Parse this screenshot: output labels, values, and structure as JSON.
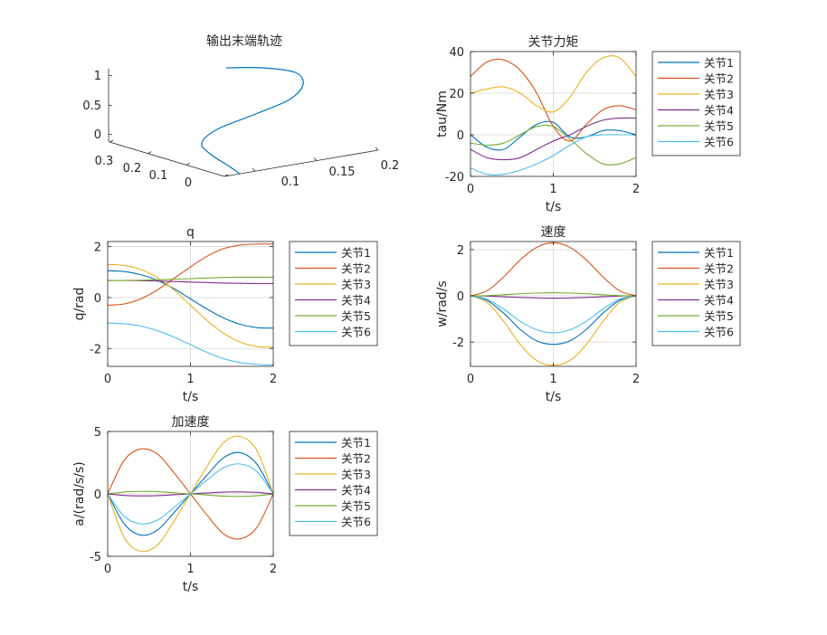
{
  "figure": {
    "background": "#ffffff"
  },
  "series_colors": [
    "#0072BD",
    "#D95319",
    "#EDB120",
    "#7E2F8E",
    "#77AC30",
    "#4DBEEE"
  ],
  "chart_data": [
    {
      "id": "traj3d",
      "type": "line3d",
      "title": "输出末端轨迹",
      "x_ticks": [
        "0.1",
        "0.15",
        "0.2"
      ],
      "y_ticks": [
        "0.3",
        "0.2",
        "0.1",
        "0"
      ],
      "z_ticks": [
        "1",
        "0.5",
        "0"
      ],
      "series": [
        {
          "color": "#0072BD",
          "x": [
            0.149,
            0.15,
            0.152,
            0.156,
            0.16,
            0.165,
            0.169,
            0.172,
            0.174,
            0.175,
            0.175
          ],
          "y": [
            0.02,
            0.022,
            0.032,
            0.06,
            0.1,
            0.15,
            0.2,
            0.242,
            0.268,
            0.278,
            0.28
          ],
          "z": [
            -0.2,
            -0.1,
            0.05,
            0.22,
            0.4,
            0.57,
            0.73,
            0.88,
            1.0,
            1.07,
            1.1
          ]
        }
      ]
    },
    {
      "id": "torque",
      "type": "line",
      "title": "关节力矩",
      "xlabel": "t/s",
      "ylabel": "tau/Nm",
      "xlim": [
        0,
        2
      ],
      "ylim": [
        -20,
        40
      ],
      "xticks": [
        0,
        1,
        2
      ],
      "yticks": [
        -20,
        0,
        20,
        40
      ],
      "legend": {
        "position": "right",
        "labels": [
          "关节1",
          "关节2",
          "关节3",
          "关节4",
          "关节5",
          "关节6"
        ]
      },
      "x": [
        0,
        0.2,
        0.4,
        0.6,
        0.8,
        1.0,
        1.2,
        1.4,
        1.6,
        1.8,
        2.0
      ],
      "series": [
        {
          "name": "关节1",
          "values": [
            0,
            -6,
            -7,
            -1,
            5,
            6,
            -1,
            -1,
            2,
            2,
            0
          ]
        },
        {
          "name": "关节2",
          "values": [
            28,
            35,
            36,
            31,
            20,
            4,
            -3,
            5,
            12,
            14,
            12
          ]
        },
        {
          "name": "关节3",
          "values": [
            20,
            22,
            23,
            20,
            14,
            11,
            18,
            30,
            37,
            37,
            28
          ]
        },
        {
          "name": "关节4",
          "values": [
            -7,
            -11,
            -12,
            -11,
            -7,
            -3,
            0,
            4,
            7,
            8,
            8
          ]
        },
        {
          "name": "关节5",
          "values": [
            -4,
            -5,
            -4,
            0,
            4,
            4,
            -2,
            -9,
            -14,
            -14,
            -11
          ]
        },
        {
          "name": "关节6",
          "values": [
            -16,
            -19,
            -19,
            -17,
            -14,
            -10,
            -5,
            -1,
            0,
            0,
            0
          ]
        }
      ]
    },
    {
      "id": "q",
      "type": "line",
      "title": "q",
      "xlabel": "t/s",
      "ylabel": "q/rad",
      "xlim": [
        0,
        2
      ],
      "ylim": [
        -2.7,
        2.2
      ],
      "xticks": [
        0,
        1,
        2
      ],
      "yticks": [
        -2,
        0,
        2
      ],
      "legend": {
        "position": "right",
        "labels": [
          "关节1",
          "关节2",
          "关节3",
          "关节4",
          "关节5",
          "关节6"
        ]
      },
      "x": [
        0,
        0.2,
        0.4,
        0.6,
        0.8,
        1.0,
        1.2,
        1.4,
        1.6,
        1.8,
        2.0
      ],
      "series": [
        {
          "name": "关节1",
          "values": [
            1.05,
            1.02,
            0.9,
            0.68,
            0.35,
            -0.05,
            -0.45,
            -0.8,
            -1.05,
            -1.18,
            -1.2
          ]
        },
        {
          "name": "关节2",
          "values": [
            -0.3,
            -0.25,
            -0.05,
            0.3,
            0.75,
            1.2,
            1.62,
            1.92,
            2.06,
            2.1,
            2.1
          ]
        },
        {
          "name": "关节3",
          "values": [
            1.3,
            1.26,
            1.1,
            0.78,
            0.3,
            -0.3,
            -0.9,
            -1.4,
            -1.75,
            -1.92,
            -1.95
          ]
        },
        {
          "name": "关节4",
          "values": [
            0.67,
            0.67,
            0.66,
            0.65,
            0.63,
            0.61,
            0.59,
            0.57,
            0.56,
            0.55,
            0.55
          ]
        },
        {
          "name": "关节5",
          "values": [
            0.67,
            0.67,
            0.68,
            0.7,
            0.72,
            0.74,
            0.77,
            0.79,
            0.8,
            0.8,
            0.8
          ]
        },
        {
          "name": "关节6",
          "values": [
            -1.0,
            -1.03,
            -1.12,
            -1.3,
            -1.55,
            -1.85,
            -2.15,
            -2.4,
            -2.55,
            -2.62,
            -2.65
          ]
        }
      ]
    },
    {
      "id": "velocity",
      "type": "line",
      "title": "速度",
      "xlabel": "t/s",
      "ylabel": "w/rad/s",
      "xlim": [
        0,
        2
      ],
      "ylim": [
        -3.05,
        2.35
      ],
      "xticks": [
        0,
        1,
        2
      ],
      "yticks": [
        -2,
        0,
        2
      ],
      "legend": {
        "position": "right",
        "labels": [
          "关节1",
          "关节2",
          "关节3",
          "关节4",
          "关节5",
          "关节6"
        ]
      },
      "x": [
        0,
        0.2,
        0.4,
        0.6,
        0.8,
        1.0,
        1.2,
        1.4,
        1.6,
        1.8,
        2.0
      ],
      "series": [
        {
          "name": "关节1",
          "values": [
            0,
            -0.2,
            -0.75,
            -1.45,
            -1.95,
            -2.1,
            -1.95,
            -1.45,
            -0.75,
            -0.2,
            0
          ]
        },
        {
          "name": "关节2",
          "values": [
            0,
            0.22,
            0.82,
            1.55,
            2.1,
            2.3,
            2.1,
            1.55,
            0.82,
            0.22,
            0
          ]
        },
        {
          "name": "关节3",
          "values": [
            0,
            -0.29,
            -1.1,
            -2.1,
            -2.8,
            -3.0,
            -2.8,
            -2.1,
            -1.1,
            -0.29,
            0
          ]
        },
        {
          "name": "关节4",
          "values": [
            0,
            -0.01,
            -0.04,
            -0.07,
            -0.09,
            -0.1,
            -0.09,
            -0.07,
            -0.04,
            -0.01,
            0
          ]
        },
        {
          "name": "关节5",
          "values": [
            0,
            0.01,
            0.05,
            0.09,
            0.12,
            0.13,
            0.12,
            0.09,
            0.05,
            0.01,
            0
          ]
        },
        {
          "name": "关节6",
          "values": [
            0,
            -0.15,
            -0.57,
            -1.1,
            -1.47,
            -1.6,
            -1.47,
            -1.1,
            -0.57,
            -0.15,
            0
          ]
        }
      ]
    },
    {
      "id": "accel",
      "type": "line",
      "title": "加速度",
      "xlabel": "t/s",
      "ylabel": "a/(rad/s/s)",
      "xlim": [
        0,
        2
      ],
      "ylim": [
        -5,
        5
      ],
      "xticks": [
        0,
        1,
        2
      ],
      "yticks": [
        -5,
        0,
        5
      ],
      "legend": {
        "position": "right",
        "labels": [
          "关节1",
          "关节2",
          "关节3",
          "关节4",
          "关节5",
          "关节6"
        ]
      },
      "x": [
        0,
        0.2,
        0.4,
        0.6,
        0.8,
        1.0,
        1.2,
        1.4,
        1.6,
        1.8,
        2.0
      ],
      "series": [
        {
          "name": "关节1",
          "values": [
            0,
            -2.4,
            -3.3,
            -2.9,
            -1.5,
            0,
            1.5,
            2.9,
            3.3,
            2.4,
            0
          ]
        },
        {
          "name": "关节2",
          "values": [
            0,
            2.7,
            3.6,
            3.2,
            1.7,
            0,
            -1.7,
            -3.2,
            -3.6,
            -2.7,
            0
          ]
        },
        {
          "name": "关节3",
          "values": [
            0,
            -3.5,
            -4.6,
            -4.1,
            -2.2,
            0,
            2.2,
            4.1,
            4.6,
            3.5,
            0
          ]
        },
        {
          "name": "关节4",
          "values": [
            0,
            -0.12,
            -0.16,
            -0.14,
            -0.07,
            0,
            0.07,
            0.14,
            0.16,
            0.12,
            0
          ]
        },
        {
          "name": "关节5",
          "values": [
            0,
            0.15,
            0.2,
            0.18,
            0.09,
            0,
            -0.09,
            -0.18,
            -0.2,
            -0.15,
            0
          ]
        },
        {
          "name": "关节6",
          "values": [
            0,
            -1.8,
            -2.4,
            -2.1,
            -1.1,
            0,
            1.1,
            2.1,
            2.4,
            1.8,
            0
          ]
        }
      ]
    }
  ]
}
